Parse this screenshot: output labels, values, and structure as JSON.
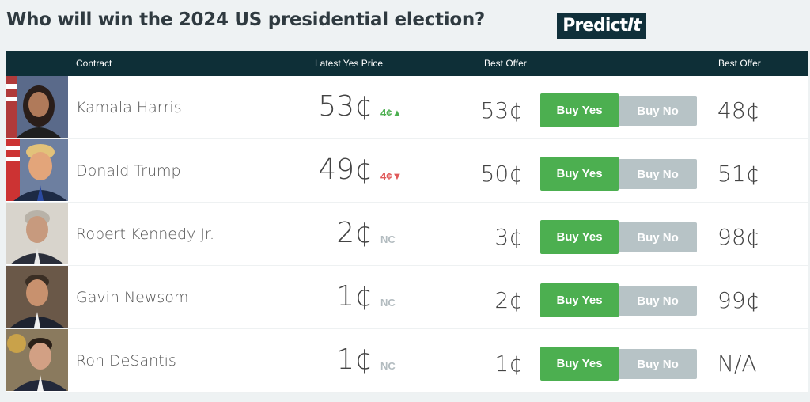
{
  "title": "Who will win the 2024 US presidential election?",
  "logo": {
    "text_main": "Predict",
    "text_accent": "It"
  },
  "header": {
    "contract": "Contract",
    "latest_yes_price": "Latest Yes Price",
    "best_offer_yes": "Best Offer",
    "best_offer_no": "Best Offer"
  },
  "rows": [
    {
      "name": "Kamala Harris",
      "price": "53¢",
      "change": "4¢",
      "direction": "up",
      "best_yes": "53¢",
      "buy_yes": "Buy Yes",
      "buy_no": "Buy No",
      "best_no": "48¢"
    },
    {
      "name": "Donald Trump",
      "price": "49¢",
      "change": "4¢",
      "direction": "down",
      "best_yes": "50¢",
      "buy_yes": "Buy Yes",
      "buy_no": "Buy No",
      "best_no": "51¢"
    },
    {
      "name": "Robert Kennedy Jr.",
      "price": "2¢",
      "change": "NC",
      "direction": "none",
      "best_yes": "3¢",
      "buy_yes": "Buy Yes",
      "buy_no": "Buy No",
      "best_no": "98¢"
    },
    {
      "name": "Gavin Newsom",
      "price": "1¢",
      "change": "NC",
      "direction": "none",
      "best_yes": "2¢",
      "buy_yes": "Buy Yes",
      "buy_no": "Buy No",
      "best_no": "99¢"
    },
    {
      "name": "Ron DeSantis",
      "price": "1¢",
      "change": "NC",
      "direction": "none",
      "best_yes": "1¢",
      "buy_yes": "Buy Yes",
      "buy_no": "Buy No",
      "best_no": "N/A"
    }
  ],
  "colors": {
    "header_bg": "#0e2f37",
    "buy_yes": "#4caf50",
    "buy_no": "#b7c3c6",
    "up": "#4caf50",
    "down": "#e05a5a"
  }
}
